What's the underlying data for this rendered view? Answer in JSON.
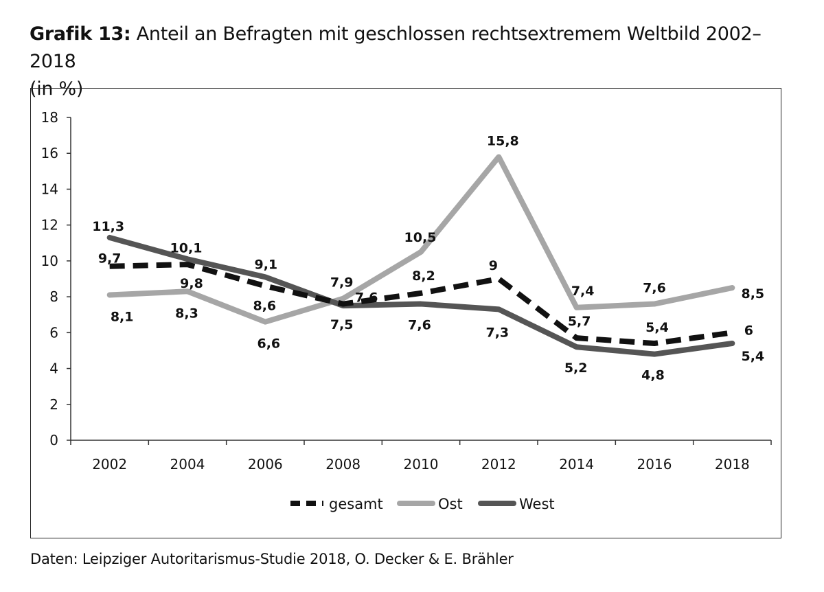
{
  "title": {
    "prefix": "Grafik 13:",
    "text": "Anteil an Befragten mit geschlossen rechtsextremem Weltbild 2002–2018",
    "unit": "(in %)"
  },
  "source": "Daten: Leipziger Autoritarismus-Studie 2018, O. Decker & E. Brähler",
  "chart_data": {
    "type": "line",
    "title": "Anteil an Befragten mit geschlossen rechtsextremem Weltbild 2002–2018 (in %)",
    "x": [
      "2002",
      "2004",
      "2006",
      "2008",
      "2010",
      "2012",
      "2014",
      "2016",
      "2018"
    ],
    "ylim": [
      0,
      18
    ],
    "yticks": [
      0,
      2,
      4,
      6,
      8,
      10,
      12,
      14,
      16,
      18
    ],
    "grid": false,
    "legend_position": "bottom",
    "series": [
      {
        "name": "gesamt",
        "style": "dashed",
        "color": "#111111",
        "values": [
          9.7,
          9.8,
          8.6,
          7.6,
          8.2,
          9.0,
          5.7,
          5.4,
          6.0
        ],
        "labels": [
          "9,7",
          "9,8",
          "8,6",
          "7,6",
          "8,2",
          "9",
          "5,7",
          "5,4",
          "6"
        ]
      },
      {
        "name": "Ost",
        "style": "solid",
        "color": "#a6a6a6",
        "values": [
          8.1,
          8.3,
          6.6,
          7.9,
          10.5,
          15.8,
          7.4,
          7.6,
          8.5
        ],
        "labels": [
          "8,1",
          "8,3",
          "6,6",
          "7,9",
          "10,5",
          "15,8",
          "7,4",
          "7,6",
          "8,5"
        ]
      },
      {
        "name": "West",
        "style": "solid",
        "color": "#555555",
        "values": [
          11.3,
          10.1,
          9.1,
          7.5,
          7.6,
          7.3,
          5.2,
          4.8,
          5.4
        ],
        "labels": [
          "11,3",
          "10,1",
          "9,1",
          "7,5",
          "7,6",
          "7,3",
          "5,2",
          "4,8",
          "5,4"
        ]
      }
    ]
  }
}
